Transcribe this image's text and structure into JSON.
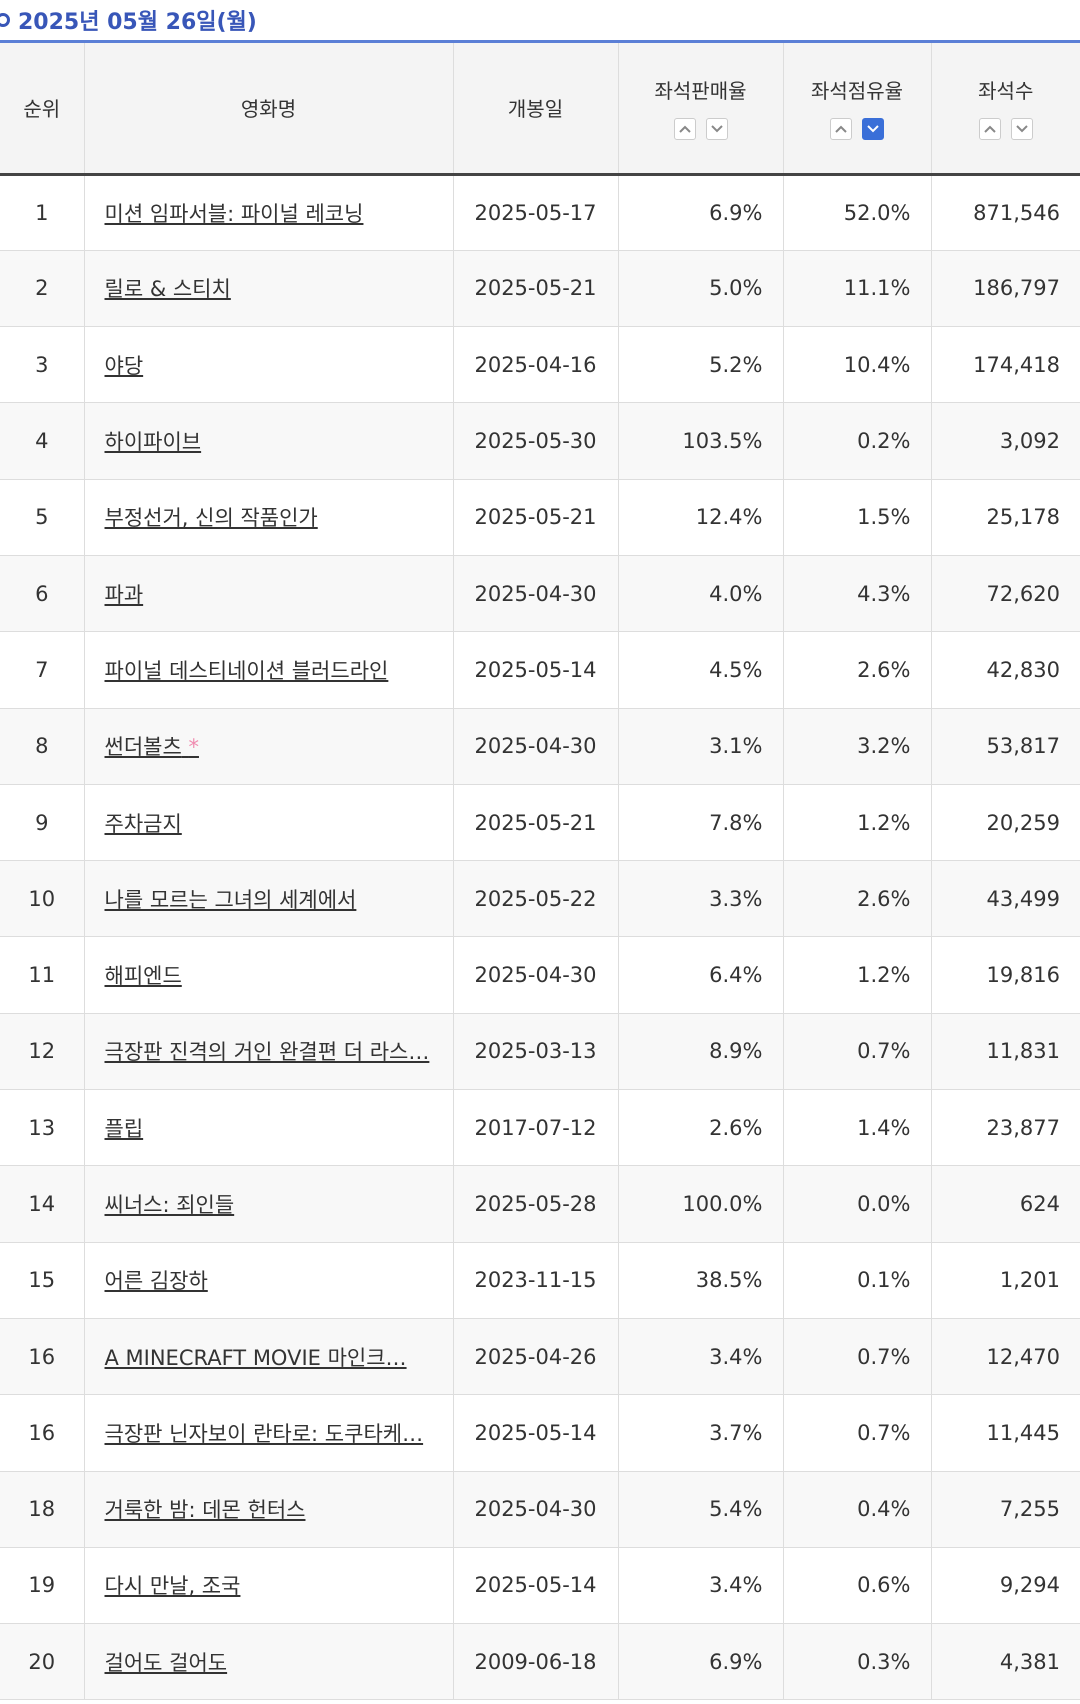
{
  "header": {
    "date": "2025년 05월 26일(월)"
  },
  "table": {
    "columns": [
      "순위",
      "영화명",
      "개봉일",
      "좌석판매율",
      "좌석점유율",
      "좌석수"
    ],
    "rows": [
      {
        "rank": "1",
        "title": "미션 임파서블: 파이널 레코닝",
        "open": "2025-05-17",
        "sales": "6.9%",
        "share": "52.0%",
        "seats": "871,546"
      },
      {
        "rank": "2",
        "title": "릴로 & 스티치",
        "open": "2025-05-21",
        "sales": "5.0%",
        "share": "11.1%",
        "seats": "186,797"
      },
      {
        "rank": "3",
        "title": "야당",
        "open": "2025-04-16",
        "sales": "5.2%",
        "share": "10.4%",
        "seats": "174,418"
      },
      {
        "rank": "4",
        "title": "하이파이브",
        "open": "2025-05-30",
        "sales": "103.5%",
        "share": "0.2%",
        "seats": "3,092"
      },
      {
        "rank": "5",
        "title": "부정선거, 신의 작품인가",
        "open": "2025-05-21",
        "sales": "12.4%",
        "share": "1.5%",
        "seats": "25,178"
      },
      {
        "rank": "6",
        "title": "파과",
        "open": "2025-04-30",
        "sales": "4.0%",
        "share": "4.3%",
        "seats": "72,620"
      },
      {
        "rank": "7",
        "title": "파이널 데스티네이션 블러드라인",
        "open": "2025-05-14",
        "sales": "4.5%",
        "share": "2.6%",
        "seats": "42,830"
      },
      {
        "rank": "8",
        "title": "썬더볼츠",
        "note": "*",
        "open": "2025-04-30",
        "sales": "3.1%",
        "share": "3.2%",
        "seats": "53,817"
      },
      {
        "rank": "9",
        "title": "주차금지",
        "open": "2025-05-21",
        "sales": "7.8%",
        "share": "1.2%",
        "seats": "20,259"
      },
      {
        "rank": "10",
        "title": "나를 모르는 그녀의 세계에서",
        "open": "2025-05-22",
        "sales": "3.3%",
        "share": "2.6%",
        "seats": "43,499"
      },
      {
        "rank": "11",
        "title": "해피엔드",
        "open": "2025-04-30",
        "sales": "6.4%",
        "share": "1.2%",
        "seats": "19,816"
      },
      {
        "rank": "12",
        "title": "극장판 진격의 거인 완결편 더 라스…",
        "open": "2025-03-13",
        "sales": "8.9%",
        "share": "0.7%",
        "seats": "11,831"
      },
      {
        "rank": "13",
        "title": "플립",
        "open": "2017-07-12",
        "sales": "2.6%",
        "share": "1.4%",
        "seats": "23,877"
      },
      {
        "rank": "14",
        "title": "씨너스: 죄인들",
        "open": "2025-05-28",
        "sales": "100.0%",
        "share": "0.0%",
        "seats": "624"
      },
      {
        "rank": "15",
        "title": "어른 김장하",
        "open": "2023-11-15",
        "sales": "38.5%",
        "share": "0.1%",
        "seats": "1,201"
      },
      {
        "rank": "16",
        "title": "A MINECRAFT MOVIE 마인크…",
        "open": "2025-04-26",
        "sales": "3.4%",
        "share": "0.7%",
        "seats": "12,470"
      },
      {
        "rank": "16",
        "title": "극장판 닌자보이 란타로: 도쿠타케…",
        "open": "2025-05-14",
        "sales": "3.7%",
        "share": "0.7%",
        "seats": "11,445"
      },
      {
        "rank": "18",
        "title": "거룩한 밤: 데몬 헌터스",
        "open": "2025-04-30",
        "sales": "5.4%",
        "share": "0.4%",
        "seats": "7,255"
      },
      {
        "rank": "19",
        "title": "다시 만날, 조국",
        "open": "2025-05-14",
        "sales": "3.4%",
        "share": "0.6%",
        "seats": "9,294"
      },
      {
        "rank": "20",
        "title": "걸어도 걸어도",
        "open": "2009-06-18",
        "sales": "6.9%",
        "share": "0.3%",
        "seats": "4,381"
      }
    ]
  }
}
